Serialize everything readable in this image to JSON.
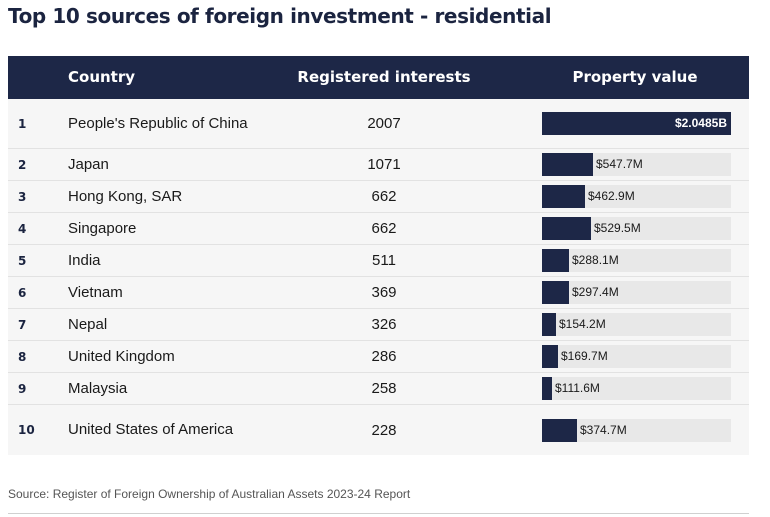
{
  "title": "Top 10 sources of foreign investment - residential",
  "columns": {
    "country": "Country",
    "registered": "Registered interests",
    "value": "Property value"
  },
  "source": "Source: Register of Foreign Ownership of Australian Assets 2023-24 Report",
  "colors": {
    "header": "#1d2747",
    "bar": "#1d2747",
    "track": "#e8e8e8",
    "row": "#f6f6f6"
  },
  "chart_data": {
    "type": "table",
    "title": "Top 10 sources of foreign investment - residential",
    "bar_column": "Property value",
    "bar_max": 2048.5,
    "rows": [
      {
        "rank": "1",
        "country": "People's Republic of China",
        "registered": "2007",
        "value": 2048.5,
        "value_label": "$2.0485B"
      },
      {
        "rank": "2",
        "country": "Japan",
        "registered": "1071",
        "value": 547.7,
        "value_label": "$547.7M"
      },
      {
        "rank": "3",
        "country": "Hong Kong, SAR",
        "registered": "662",
        "value": 462.9,
        "value_label": "$462.9M"
      },
      {
        "rank": "4",
        "country": "Singapore",
        "registered": "662",
        "value": 529.5,
        "value_label": "$529.5M"
      },
      {
        "rank": "5",
        "country": "India",
        "registered": "511",
        "value": 288.1,
        "value_label": "$288.1M"
      },
      {
        "rank": "6",
        "country": "Vietnam",
        "registered": "369",
        "value": 297.4,
        "value_label": "$297.4M"
      },
      {
        "rank": "7",
        "country": "Nepal",
        "registered": "326",
        "value": 154.2,
        "value_label": "$154.2M"
      },
      {
        "rank": "8",
        "country": "United Kingdom",
        "registered": "286",
        "value": 169.7,
        "value_label": "$169.7M"
      },
      {
        "rank": "9",
        "country": "Malaysia",
        "registered": "258",
        "value": 111.6,
        "value_label": "$111.6M"
      },
      {
        "rank": "10",
        "country": "United States of America",
        "registered": "228",
        "value": 374.7,
        "value_label": "$374.7M"
      }
    ]
  }
}
